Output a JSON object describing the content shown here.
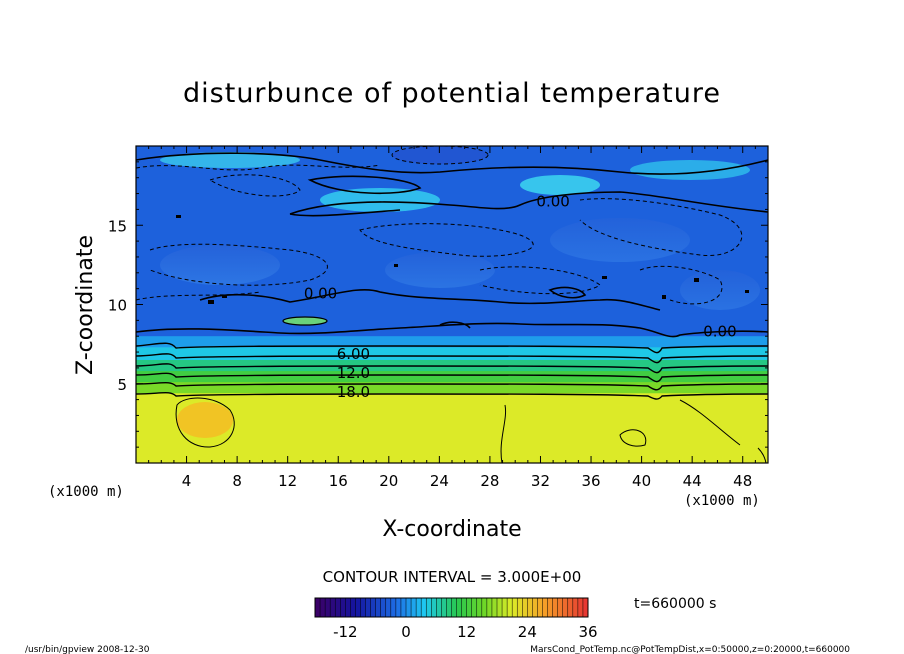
{
  "chart_data": {
    "type": "heatmap",
    "title": "disturbunce of potential temperature",
    "xlabel": "X-coordinate",
    "ylabel": "Z-coordinate",
    "x_unit_left": "(x1000 m)",
    "x_unit_right": "(x1000 m)",
    "xlim": [
      0,
      50
    ],
    "ylim": [
      0,
      20
    ],
    "x_ticks": [
      4,
      8,
      12,
      16,
      20,
      24,
      28,
      32,
      36,
      40,
      44,
      48
    ],
    "y_ticks": [
      5,
      10,
      15
    ],
    "contour_interval_text": "CONTOUR INTERVAL = 3.000E+00",
    "contour_labels": [
      {
        "text": "0.00",
        "x": 33.0,
        "y": 16.3
      },
      {
        "text": "0.00",
        "x": 14.6,
        "y": 10.5
      },
      {
        "text": "0.00",
        "x": 46.2,
        "y": 8.1
      },
      {
        "text": "6.00",
        "x": 17.2,
        "y": 6.7
      },
      {
        "text": "12.0",
        "x": 17.2,
        "y": 5.5
      },
      {
        "text": "18.0",
        "x": 17.2,
        "y": 4.3
      }
    ],
    "time_label": "t=660000 s",
    "colorbar": {
      "min": -18,
      "max": 36,
      "ticks": [
        -12,
        0,
        12,
        24,
        36
      ]
    },
    "layers": [
      {
        "z_top": 20.0,
        "value": -3
      },
      {
        "z_top": 8.0,
        "value": 1
      },
      {
        "z_top": 7.3,
        "value": 4
      },
      {
        "z_top": 6.5,
        "value": 8
      },
      {
        "z_top": 5.8,
        "value": 12
      },
      {
        "z_top": 5.1,
        "value": 16
      },
      {
        "z_top": 4.4,
        "value": 21
      }
    ]
  },
  "footer": {
    "left": "/usr/bin/gpview  2008-12-30",
    "right": "MarsCond_PotTemp.nc@PotTempDist,x=0:50000,z=0:20000,t=660000"
  },
  "colors": {
    "frame": "#000000",
    "cold_blue": "#2f7fe8",
    "cyan": "#22c8f0",
    "green": "#33cc44",
    "yellow_green": "#d8ec30"
  }
}
